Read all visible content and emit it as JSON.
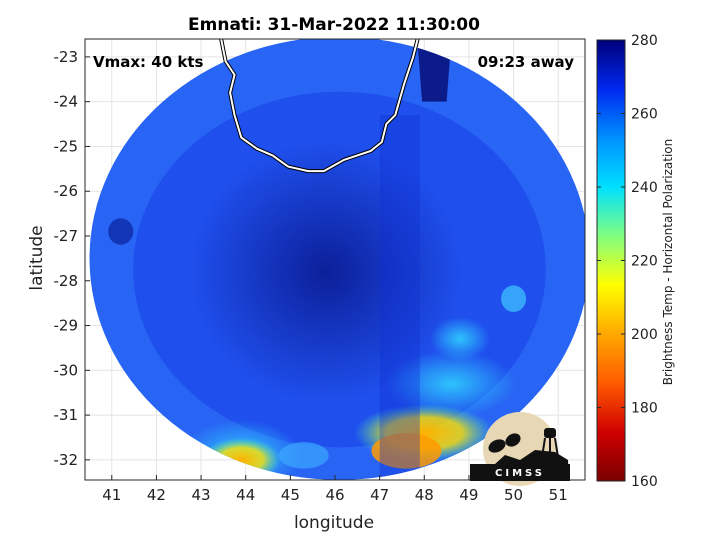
{
  "chart_data": {
    "type": "heatmap",
    "title": "Emnati: 31-Mar-2022 11:30:00",
    "xlabel": "longitude",
    "ylabel": "latitude",
    "xlim": [
      40.4,
      51.6
    ],
    "ylim": [
      -32.45,
      -22.6
    ],
    "x_ticks": [
      41,
      42,
      43,
      44,
      45,
      46,
      47,
      48,
      49,
      50,
      51
    ],
    "y_ticks": [
      -23,
      -24,
      -25,
      -26,
      -27,
      -28,
      -29,
      -30,
      -31,
      -32
    ],
    "grid": true,
    "annotations": {
      "vmax": "Vmax: 40 kts",
      "time_away": "09:23 away"
    },
    "colorbar": {
      "label": "Brightness Temp - Horizontal Polarization",
      "range": [
        160,
        280
      ],
      "ticks": [
        280,
        260,
        240,
        220,
        200,
        180,
        160
      ],
      "colormap": [
        "#7a0000",
        "#d00000",
        "#ff5a00",
        "#ffa800",
        "#ffff00",
        "#80ff80",
        "#00e0ff",
        "#0090ff",
        "#0028f0",
        "#00007a"
      ]
    },
    "swath": {
      "center": [
        46.1,
        -27.5
      ],
      "radius_deg_lon": 5.6,
      "radius_deg_lat": 4.95,
      "background_tb": 257,
      "features": [
        {
          "lon": 45.8,
          "lat": -27.8,
          "tb": 268,
          "note": "cold core"
        },
        {
          "lon": 43.8,
          "lat": -31.9,
          "tb": 215
        },
        {
          "lon": 47.8,
          "lat": -31.4,
          "tb": 200
        },
        {
          "lon": 48.6,
          "lat": -30.2,
          "tb": 235
        }
      ]
    },
    "coastline_lonlat": [
      [
        43.45,
        -22.6
      ],
      [
        43.55,
        -23.1
      ],
      [
        43.75,
        -23.4
      ],
      [
        43.65,
        -23.8
      ],
      [
        43.75,
        -24.3
      ],
      [
        43.9,
        -24.8
      ],
      [
        44.25,
        -25.05
      ],
      [
        44.6,
        -25.2
      ],
      [
        44.95,
        -25.45
      ],
      [
        45.4,
        -25.55
      ],
      [
        45.75,
        -25.55
      ],
      [
        46.2,
        -25.3
      ],
      [
        46.8,
        -25.1
      ],
      [
        47.05,
        -24.9
      ],
      [
        47.15,
        -24.5
      ],
      [
        47.35,
        -24.3
      ],
      [
        47.55,
        -23.6
      ],
      [
        47.75,
        -23.0
      ],
      [
        47.85,
        -22.6
      ]
    ],
    "logo_text": "CIMSS"
  }
}
